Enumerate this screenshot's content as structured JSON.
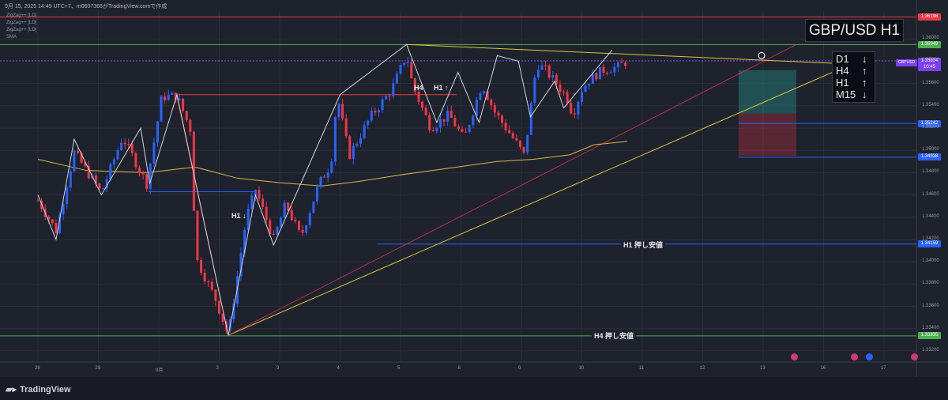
{
  "header": {
    "line": "9月 15, 2025 14:49 UTC+7、m0607366がTradingView.comで作成"
  },
  "indicators": [
    "ZigZag++ [LD]",
    "ZigZag++ [LD]",
    "ZigZag++ [LD]",
    "SMA"
  ],
  "title": "GBP/USD H1",
  "timeframes": [
    {
      "tf": "D1",
      "dir": "↓"
    },
    {
      "tf": "H4",
      "dir": "↑"
    },
    {
      "tf": "H1",
      "dir": "↑"
    },
    {
      "tf": "M15",
      "dir": "↓"
    }
  ],
  "symbol_label": "GBPUSD",
  "current_price": "1.35804",
  "countdown": "10:45",
  "price_labels": [
    {
      "value": 1.36198,
      "text": "1.36198",
      "color": "#f23645"
    },
    {
      "value": 1.35949,
      "text": "1.35949",
      "color": "#4caf50"
    },
    {
      "value": 1.35242,
      "text": "1.35242",
      "color": "#2962ff"
    },
    {
      "value": 1.34938,
      "text": "1.34938",
      "color": "#2962ff"
    },
    {
      "value": 1.34159,
      "text": "1.34159",
      "color": "#2962ff"
    },
    {
      "value": 1.33335,
      "text": "1.33335",
      "color": "#4caf50"
    }
  ],
  "annotations": {
    "h4": "H4",
    "h1_up": "H1 ↑",
    "h1_down": "H1 ↓",
    "h1_support": "H1 押し安値",
    "h4_support": "H4 押し安値"
  },
  "brand": "TradingView",
  "chart_data": {
    "type": "candlestick",
    "symbol": "GBP/USD",
    "timeframe": "H1",
    "ylim": [
      1.331,
      1.3625
    ],
    "y_ticks": [
      1.332,
      1.334,
      1.336,
      1.338,
      1.34,
      1.342,
      1.344,
      1.346,
      1.348,
      1.35,
      1.352,
      1.354,
      1.356,
      1.358,
      1.36
    ],
    "y_tick_labels": [
      "1.33200",
      "1.33400",
      "1.33600",
      "1.33800",
      "1.34000",
      "1.34200",
      "1.34400",
      "1.34600",
      "1.34800",
      "1.35000",
      "1.35200",
      "1.35400",
      "1.35600",
      "1.35800",
      "1.36000"
    ],
    "x_tick_labels": [
      "28",
      "29",
      "9月",
      "2",
      "3",
      "4",
      "5",
      "8",
      "9",
      "10",
      "11",
      "12",
      "13",
      "16",
      "17"
    ],
    "x_tick_pos": [
      0,
      1,
      2,
      3,
      4,
      5,
      6,
      7,
      8,
      9,
      10,
      11,
      12,
      13,
      14
    ],
    "price_path": [
      [
        0.0,
        1.3455
      ],
      [
        0.3,
        1.3428
      ],
      [
        0.6,
        1.3498
      ],
      [
        1.05,
        1.3462
      ],
      [
        1.4,
        1.3512
      ],
      [
        1.8,
        1.347
      ],
      [
        2.05,
        1.3548
      ],
      [
        2.3,
        1.3549
      ],
      [
        2.55,
        1.3515
      ],
      [
        2.6,
        1.3405
      ],
      [
        2.95,
        1.3365
      ],
      [
        3.15,
        1.3334
      ],
      [
        3.45,
        1.344
      ],
      [
        3.6,
        1.3465
      ],
      [
        3.9,
        1.342
      ],
      [
        4.1,
        1.3452
      ],
      [
        4.35,
        1.3422
      ],
      [
        4.65,
        1.347
      ],
      [
        4.85,
        1.3488
      ],
      [
        4.95,
        1.355
      ],
      [
        5.15,
        1.3495
      ],
      [
        5.5,
        1.353
      ],
      [
        5.85,
        1.3554
      ],
      [
        6.1,
        1.3586
      ],
      [
        6.2,
        1.3558
      ],
      [
        6.5,
        1.352
      ],
      [
        6.8,
        1.3532
      ],
      [
        7.05,
        1.351
      ],
      [
        7.35,
        1.356
      ],
      [
        7.55,
        1.3535
      ],
      [
        7.9,
        1.3508
      ],
      [
        8.05,
        1.3495
      ],
      [
        8.25,
        1.3578
      ],
      [
        8.4,
        1.3572
      ],
      [
        8.75,
        1.3548
      ],
      [
        8.85,
        1.3532
      ],
      [
        9.0,
        1.3555
      ],
      [
        9.15,
        1.3565
      ],
      [
        9.35,
        1.3572
      ],
      [
        9.6,
        1.3575
      ],
      [
        9.75,
        1.358
      ]
    ],
    "sma_path": [
      [
        0.0,
        1.3492
      ],
      [
        0.8,
        1.3482
      ],
      [
        1.8,
        1.348
      ],
      [
        2.6,
        1.3485
      ],
      [
        3.3,
        1.3475
      ],
      [
        4.0,
        1.3471
      ],
      [
        4.7,
        1.3468
      ],
      [
        5.3,
        1.3472
      ],
      [
        6.0,
        1.3478
      ],
      [
        6.8,
        1.3484
      ],
      [
        7.6,
        1.349
      ],
      [
        8.2,
        1.3492
      ],
      [
        8.8,
        1.3496
      ],
      [
        9.2,
        1.3505
      ],
      [
        9.75,
        1.3508
      ]
    ],
    "horizontal_levels": [
      {
        "value": 1.36198,
        "color": "#f23645"
      },
      {
        "value": 1.35949,
        "color": "#4caf50"
      },
      {
        "value": 1.35804,
        "color": "#7b3ff2"
      },
      {
        "value": 1.35242,
        "color": "#2962ff"
      },
      {
        "value": 1.34938,
        "color": "#2962ff"
      },
      {
        "value": 1.34159,
        "color": "#2962ff"
      },
      {
        "value": 1.33335,
        "color": "#4caf50"
      }
    ],
    "zigzag": [
      [
        0.0,
        1.346
      ],
      [
        0.3,
        1.342
      ],
      [
        0.6,
        1.351
      ],
      [
        1.05,
        1.346
      ],
      [
        1.7,
        1.352
      ],
      [
        1.85,
        1.347
      ],
      [
        2.3,
        1.355
      ],
      [
        3.15,
        1.3334
      ],
      [
        3.6,
        1.346
      ],
      [
        3.9,
        1.3415
      ],
      [
        5.0,
        1.355
      ],
      [
        6.1,
        1.3595
      ],
      [
        6.6,
        1.3525
      ],
      [
        6.95,
        1.357
      ],
      [
        7.3,
        1.3525
      ],
      [
        7.6,
        1.3585
      ],
      [
        7.95,
        1.358
      ],
      [
        8.15,
        1.353
      ],
      [
        8.55,
        1.3562
      ],
      [
        8.7,
        1.3538
      ],
      [
        9.5,
        1.359
      ]
    ]
  }
}
